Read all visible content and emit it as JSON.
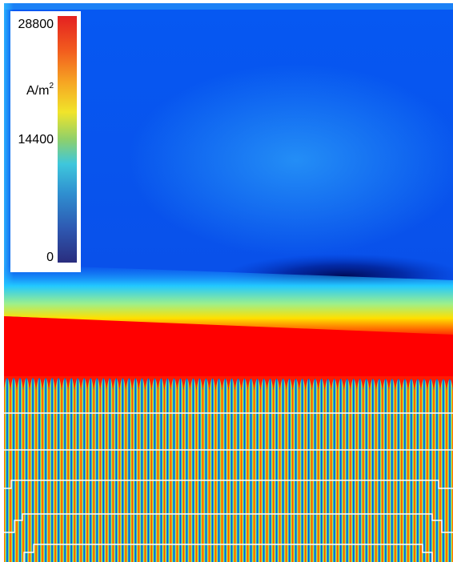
{
  "colorbar": {
    "max_label": "28800",
    "unit_base": "A/m",
    "unit_exponent": "2",
    "mid_label": "14400",
    "min_label": "0",
    "colormap": [
      "#2a2d7e",
      "#2e59b2",
      "#2f8fd0",
      "#3ec7dc",
      "#8fd06a",
      "#f1e42a",
      "#f6a623",
      "#f25c1e",
      "#e42020"
    ]
  },
  "field": {
    "background_color": "#0a5cf0",
    "dark_zone_color": "#00157a",
    "hot_band_color": "#ff0000",
    "stripe_colors": [
      "#ff2a00",
      "#ffd800",
      "#00c8d8",
      "#0033dd"
    ],
    "stripe_count": 70,
    "outline_color": "#ffffff"
  }
}
